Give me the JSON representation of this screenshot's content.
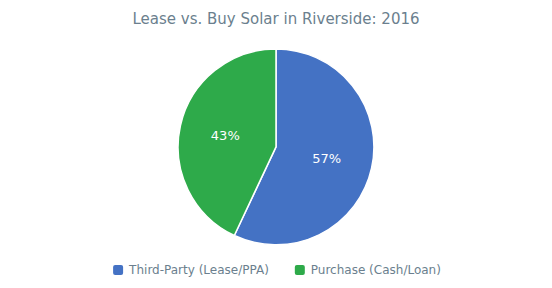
{
  "chart_data": {
    "type": "pie",
    "title": "Lease vs. Buy Solar in Riverside: 2016",
    "categories": [
      "Third-Party (Lease/PPA)",
      "Purchase (Cash/Loan)"
    ],
    "values": [
      57,
      43
    ],
    "value_labels": [
      "57%",
      "43%"
    ],
    "colors": [
      "#4472C4",
      "#2EAA4A"
    ],
    "data_labels": true,
    "legend": "bottom"
  }
}
